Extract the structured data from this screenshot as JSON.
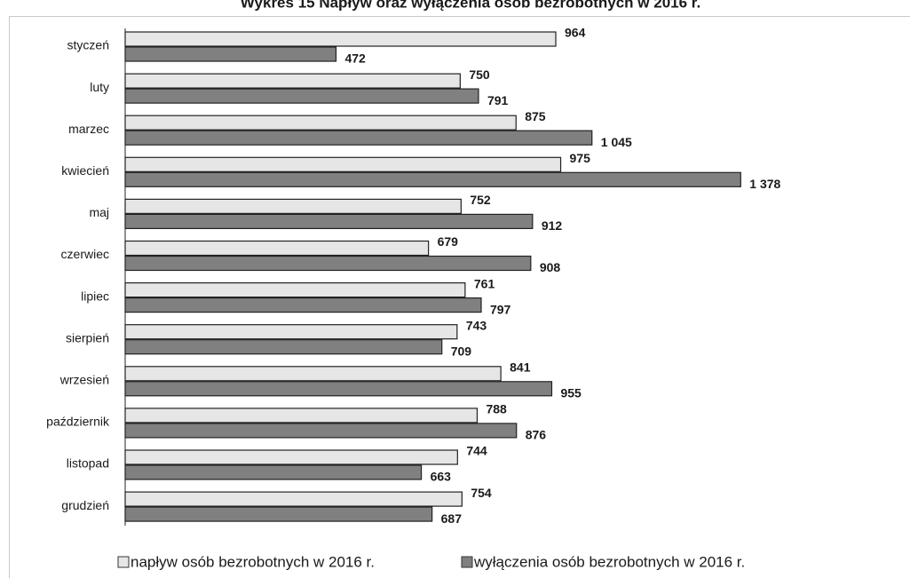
{
  "chart_data": {
    "type": "bar",
    "orientation": "horizontal",
    "title": "Wykres 15 Napływ oraz wyłączenia osób bezrobotnych w 2016 r.",
    "categories": [
      "styczeń",
      "luty",
      "marzec",
      "kwiecień",
      "maj",
      "czerwiec",
      "lipiec",
      "sierpień",
      "wrzesień",
      "październik",
      "listopad",
      "grudzień"
    ],
    "series": [
      {
        "name": "napływ osób bezrobotnych w 2016 r.",
        "color": "#e6e6e6",
        "values": [
          964,
          750,
          875,
          975,
          752,
          679,
          761,
          743,
          841,
          788,
          744,
          754
        ]
      },
      {
        "name": "wyłączenia osób bezrobotnych w 2016 r.",
        "color": "#808080",
        "values": [
          472,
          791,
          1045,
          1378,
          912,
          908,
          797,
          709,
          955,
          876,
          663,
          687
        ],
        "value_labels": [
          "472",
          "791",
          "1 045",
          "1 378",
          "912",
          "908",
          "797",
          "709",
          "955",
          "876",
          "663",
          "687"
        ]
      }
    ],
    "xlim": [
      0,
      1600
    ],
    "legend": "bottom"
  }
}
